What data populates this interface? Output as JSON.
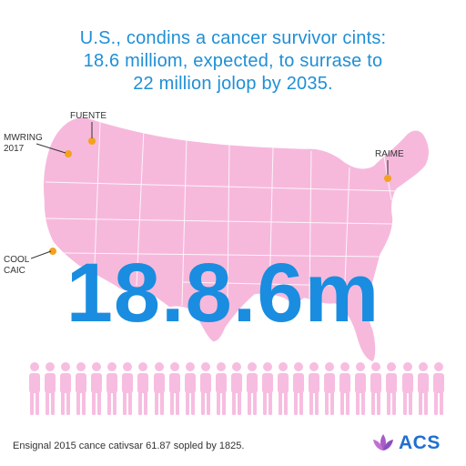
{
  "headline": {
    "line1": "U.S., condins a cancer survivor cints:",
    "line2": "18.6 milliom, expected, to surrase to",
    "line3": "22 million jolop by 2035."
  },
  "map": {
    "big_number": "18.8.6m",
    "callouts": {
      "fuente": "FUENTE",
      "mwring_line1": "MWRING",
      "mwring_line2": "2017",
      "raime": "RAIME",
      "cool_line1": "COOL",
      "cool_line2": "CAIC"
    }
  },
  "people": {
    "count": 27
  },
  "footer": {
    "note": "Ensignal 2015 cance cativsar 61.87 sopled by 1825.",
    "logo": "ACS"
  },
  "colors": {
    "headline": "#1f8fd6",
    "map_fill": "#f6b9dc",
    "big_number": "#1a8de0",
    "marker": "#f4a21d",
    "person": "#f7bde0",
    "logo_text": "#1f6fd1",
    "logo_petals": "#a95cc6"
  }
}
